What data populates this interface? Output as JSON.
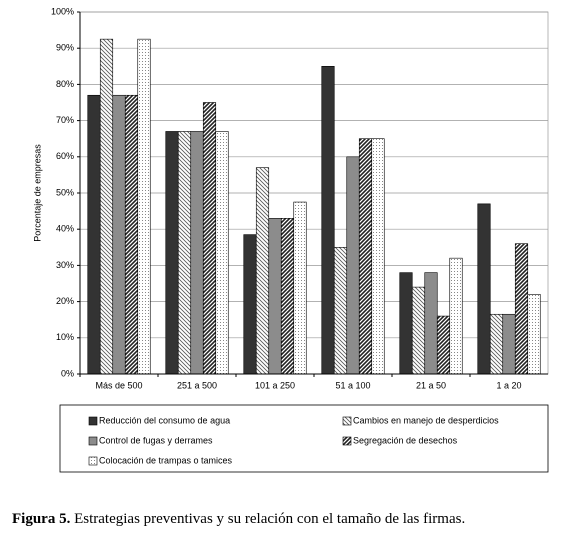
{
  "chart_data": {
    "type": "bar",
    "y_label": "Porcentaje de empresas",
    "caption_label": "Figura 5.",
    "caption": "Estrategias preventivas y su relación con el tamaño de las firmas.",
    "categories": [
      "Más de 500",
      "251 a 500",
      "101 a 250",
      "51 a 100",
      "21 a 50",
      "1 a 20"
    ],
    "series": [
      {
        "name": "Reducción del consumo de agua",
        "color": "#333333",
        "pattern": "solid",
        "values": [
          77,
          67,
          38.5,
          85,
          28,
          47
        ]
      },
      {
        "name": "Cambios en manejo de desperdicios",
        "color": "#555555",
        "pattern": "hatch-light",
        "values": [
          92.5,
          67,
          57,
          35,
          24,
          16.5
        ]
      },
      {
        "name": "Control de fugas y derrames",
        "color": "#8c8c8c",
        "pattern": "solid",
        "values": [
          77,
          67,
          43,
          60,
          28,
          16.5
        ]
      },
      {
        "name": "Segregación de desechos",
        "color": "#222222",
        "pattern": "hatch-dense",
        "values": [
          77,
          75,
          43,
          65,
          16,
          36
        ]
      },
      {
        "name": "Colocación de trampas o tamices",
        "color": "#444444",
        "pattern": "dots",
        "values": [
          92.5,
          67,
          47.5,
          65,
          32,
          22
        ]
      }
    ],
    "ylim": [
      0,
      100
    ],
    "yticks": [
      {
        "value": 0,
        "label": "0%"
      },
      {
        "value": 10,
        "label": "10%"
      },
      {
        "value": 20,
        "label": "20%"
      },
      {
        "value": 30,
        "label": "30%"
      },
      {
        "value": 40,
        "label": "40%"
      },
      {
        "value": 50,
        "label": "50%"
      },
      {
        "value": 60,
        "label": "60%"
      },
      {
        "value": 70,
        "label": "70%"
      },
      {
        "value": 80,
        "label": "80%"
      },
      {
        "value": 90,
        "label": "90%"
      },
      {
        "value": 100,
        "label": "100%"
      }
    ],
    "grid": true,
    "legend": "bottom"
  }
}
